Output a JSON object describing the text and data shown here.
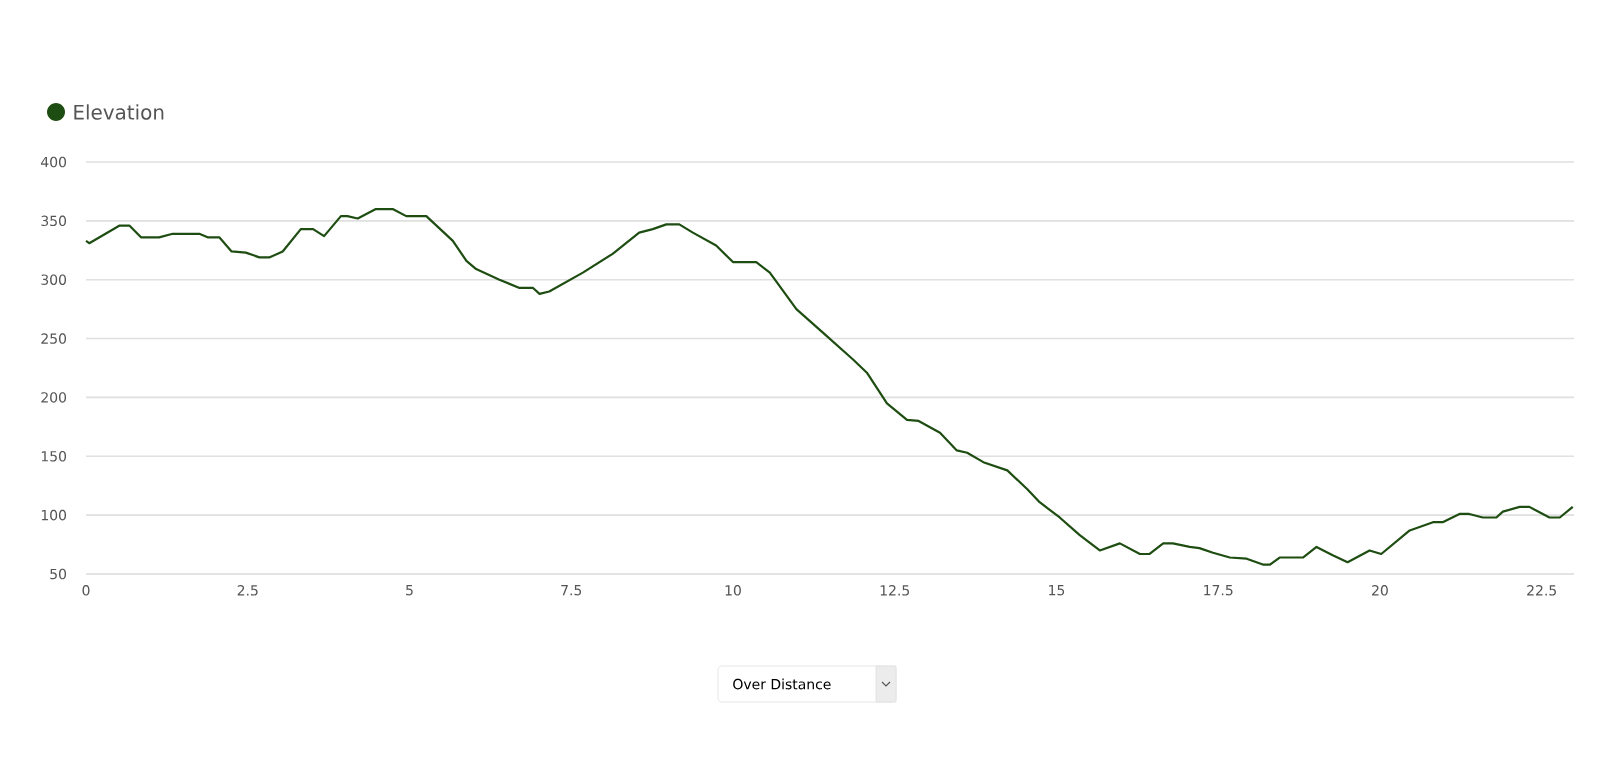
{
  "chart_data": {
    "type": "line",
    "x": [
      0,
      0.05,
      0.52,
      0.67,
      0.85,
      1.13,
      1.34,
      1.75,
      1.88,
      2.06,
      2.25,
      2.47,
      2.68,
      2.84,
      3.04,
      3.32,
      3.51,
      3.68,
      3.94,
      4.04,
      4.2,
      4.48,
      4.74,
      4.95,
      5.26,
      5.67,
      5.88,
      6.03,
      6.39,
      6.7,
      6.91,
      7.01,
      7.16,
      7.68,
      8.14,
      8.55,
      8.76,
      8.97,
      9.17,
      9.38,
      9.74,
      10.0,
      10.36,
      10.57,
      10.98,
      11.39,
      11.86,
      12.07,
      12.38,
      12.69,
      12.87,
      13.2,
      13.46,
      13.62,
      13.87,
      14.24,
      14.55,
      14.74,
      15.05,
      15.36,
      15.67,
      15.98,
      16.29,
      16.44,
      16.65,
      16.8,
      17.06,
      17.21,
      17.42,
      17.68,
      17.94,
      18.19,
      18.3,
      18.45,
      18.81,
      19.02,
      19.27,
      19.5,
      19.84,
      20.02,
      20.46,
      20.82,
      20.97,
      21.23,
      21.38,
      21.59,
      21.8,
      21.9,
      22.16,
      22.31,
      22.62,
      22.78,
      22.98
    ],
    "series": [
      {
        "name": "Elevation",
        "color": "#1e4d12",
        "values": [
          333,
          331,
          346,
          346,
          336,
          336,
          339,
          339,
          336,
          336,
          324,
          323,
          319,
          319,
          324,
          343,
          343,
          337,
          354,
          354,
          352,
          360,
          360,
          354,
          354,
          333,
          316,
          309,
          300,
          293,
          293,
          288,
          290,
          306,
          322,
          340,
          343,
          347,
          347,
          340,
          329,
          315,
          315,
          306,
          275,
          255,
          232,
          221,
          195,
          181,
          180,
          170,
          155,
          153,
          145,
          138,
          122,
          111,
          98,
          83,
          70,
          76,
          67,
          67,
          76,
          76,
          73,
          72,
          68,
          64,
          63,
          58,
          58,
          64,
          64,
          73,
          66,
          60,
          70,
          67,
          87,
          94,
          94,
          101,
          101,
          98,
          98,
          103,
          107,
          107,
          98,
          98,
          107
        ]
      }
    ],
    "xlim": [
      0,
      23
    ],
    "xticks": [
      0,
      2.5,
      5,
      7.5,
      10,
      12.5,
      15,
      17.5,
      20,
      22.5
    ],
    "ylim": [
      50,
      400
    ],
    "yticks": [
      50,
      100,
      150,
      200,
      250,
      300,
      350,
      400
    ],
    "grid": "y",
    "legend": "top left",
    "annotations": [
      "Over Distance"
    ]
  }
}
